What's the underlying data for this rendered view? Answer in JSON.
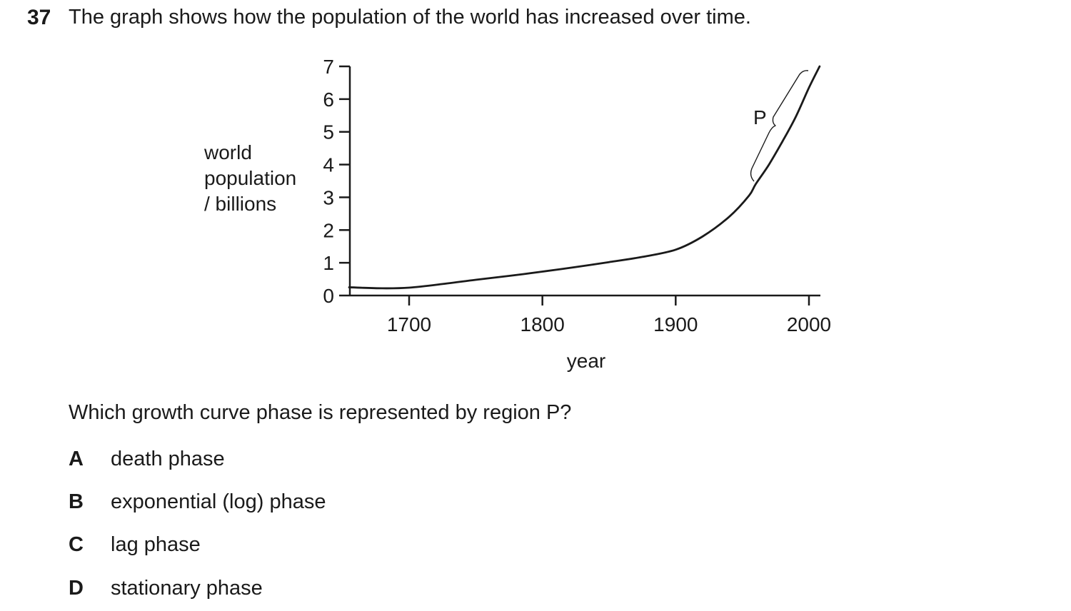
{
  "question": {
    "number": "37",
    "text": "The graph shows how the population of the world has increased over time.",
    "prompt": "Which growth curve phase is represented by region P?"
  },
  "options": [
    {
      "letter": "A",
      "text": "death phase"
    },
    {
      "letter": "B",
      "text": "exponential (log) phase"
    },
    {
      "letter": "C",
      "text": "lag phase"
    },
    {
      "letter": "D",
      "text": "stationary phase"
    }
  ],
  "chart_data": {
    "type": "line",
    "title": "",
    "xlabel": "year",
    "ylabel_lines": [
      "world",
      "population",
      "/ billions"
    ],
    "xlim": [
      1655,
      2008
    ],
    "ylim": [
      0,
      7
    ],
    "xticks": [
      1700,
      1800,
      1900,
      2000
    ],
    "yticks": [
      0,
      1,
      2,
      3,
      4,
      5,
      6,
      7
    ],
    "grid": false,
    "series": [
      {
        "name": "world population",
        "x": [
          1655,
          1680,
          1700,
          1725,
          1750,
          1775,
          1800,
          1825,
          1850,
          1875,
          1900,
          1920,
          1940,
          1955,
          1960,
          1970,
          1980,
          1990,
          2000,
          2008
        ],
        "values": [
          0.25,
          0.22,
          0.24,
          0.35,
          0.48,
          0.6,
          0.73,
          0.87,
          1.02,
          1.18,
          1.4,
          1.8,
          2.4,
          3.05,
          3.4,
          4.0,
          4.7,
          5.45,
          6.35,
          7.0
        ]
      }
    ],
    "annotations": [
      {
        "label": "P",
        "from_year": 1958,
        "to_year": 2000,
        "note": "brace marking region P"
      }
    ],
    "colors": {
      "line": "#1a1a1a",
      "text": "#1a1a1a"
    }
  }
}
